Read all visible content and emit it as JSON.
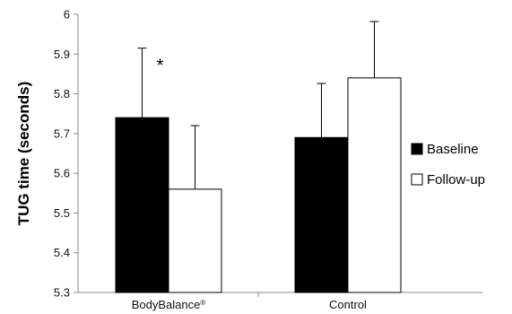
{
  "chart_data": {
    "type": "bar",
    "ylabel": "TUG time (seconds)",
    "ylim": [
      5.3,
      6.0
    ],
    "yticks": [
      5.3,
      5.4,
      5.5,
      5.6,
      5.7,
      5.8,
      5.9,
      6.0
    ],
    "ytick_labels": [
      "5.3",
      "5.4",
      "5.5",
      "5.6",
      "5.7",
      "5.8",
      "5.9",
      "6"
    ],
    "categories": [
      "BodyBalance",
      "Control"
    ],
    "category_superscripts": [
      "®",
      ""
    ],
    "series": [
      {
        "name": "Baseline",
        "color": "#000000",
        "values": [
          5.74,
          5.69
        ],
        "error_upper": [
          5.915,
          5.826
        ]
      },
      {
        "name": "Follow-up",
        "color": "#ffffff",
        "values": [
          5.56,
          5.84
        ],
        "error_upper": [
          5.72,
          5.982
        ]
      }
    ],
    "annotations": [
      {
        "text": "*",
        "category": "BodyBalance",
        "series": "Baseline"
      }
    ],
    "legend_position": "right",
    "grid": false
  }
}
